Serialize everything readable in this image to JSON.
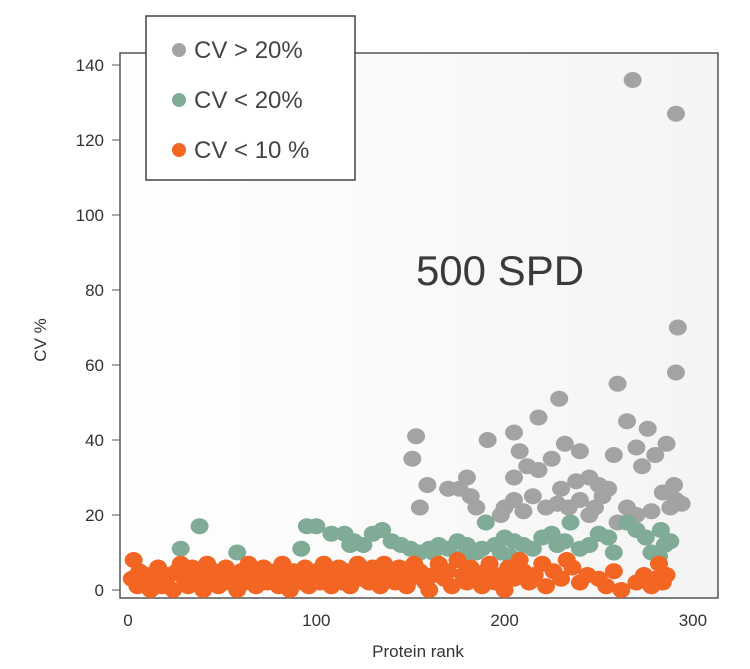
{
  "chart_data": {
    "type": "scatter",
    "title": "",
    "annotation": "500 SPD",
    "xlabel": "Protein rank",
    "ylabel": "CV %",
    "xlim": [
      -5,
      310
    ],
    "ylim": [
      -2,
      142
    ],
    "xticks": [
      0,
      100,
      200,
      300
    ],
    "yticks": [
      0,
      20,
      40,
      60,
      80,
      100,
      120,
      140
    ],
    "grid": false,
    "legend_position": "top-left",
    "series": [
      {
        "name": "CV > 20%",
        "color": "#a3a3a3",
        "points": [
          [
            268,
            136
          ],
          [
            291,
            127
          ],
          [
            292,
            70
          ],
          [
            291,
            58
          ],
          [
            153,
            41
          ],
          [
            151,
            35
          ],
          [
            159,
            28
          ],
          [
            155,
            22
          ],
          [
            191,
            40
          ],
          [
            205,
            42
          ],
          [
            218,
            46
          ],
          [
            229,
            51
          ],
          [
            260,
            55
          ],
          [
            276,
            43
          ],
          [
            286,
            39
          ],
          [
            265,
            45
          ],
          [
            258,
            36
          ],
          [
            270,
            38
          ],
          [
            273,
            33
          ],
          [
            280,
            36
          ],
          [
            232,
            39
          ],
          [
            240,
            37
          ],
          [
            225,
            35
          ],
          [
            208,
            37
          ],
          [
            212,
            33
          ],
          [
            218,
            32
          ],
          [
            205,
            30
          ],
          [
            180,
            30
          ],
          [
            176,
            27
          ],
          [
            170,
            27
          ],
          [
            182,
            25
          ],
          [
            230,
            27
          ],
          [
            238,
            29
          ],
          [
            245,
            30
          ],
          [
            250,
            28
          ],
          [
            252,
            25
          ],
          [
            255,
            27
          ],
          [
            248,
            22
          ],
          [
            245,
            20
          ],
          [
            240,
            24
          ],
          [
            234,
            22
          ],
          [
            228,
            23
          ],
          [
            222,
            22
          ],
          [
            215,
            25
          ],
          [
            205,
            24
          ],
          [
            200,
            22
          ],
          [
            198,
            20
          ],
          [
            210,
            21
          ],
          [
            260,
            18
          ],
          [
            265,
            22
          ],
          [
            288,
            22
          ],
          [
            291,
            24
          ],
          [
            294,
            23
          ],
          [
            284,
            26
          ],
          [
            290,
            28
          ],
          [
            278,
            21
          ],
          [
            270,
            20
          ],
          [
            185,
            22
          ]
        ]
      },
      {
        "name": "CV < 20%",
        "color": "#7fab97",
        "points": [
          [
            28,
            11
          ],
          [
            38,
            17
          ],
          [
            58,
            10
          ],
          [
            92,
            11
          ],
          [
            95,
            17
          ],
          [
            100,
            17
          ],
          [
            108,
            15
          ],
          [
            115,
            15
          ],
          [
            120,
            13
          ],
          [
            125,
            12
          ],
          [
            130,
            15
          ],
          [
            135,
            16
          ],
          [
            118,
            12
          ],
          [
            140,
            13
          ],
          [
            145,
            12
          ],
          [
            150,
            11
          ],
          [
            155,
            10
          ],
          [
            160,
            11
          ],
          [
            165,
            12
          ],
          [
            170,
            11
          ],
          [
            175,
            13
          ],
          [
            180,
            12
          ],
          [
            185,
            10
          ],
          [
            188,
            11
          ],
          [
            190,
            18
          ],
          [
            195,
            12
          ],
          [
            198,
            10
          ],
          [
            200,
            14
          ],
          [
            205,
            13
          ],
          [
            210,
            12
          ],
          [
            215,
            11
          ],
          [
            220,
            14
          ],
          [
            225,
            15
          ],
          [
            228,
            12
          ],
          [
            232,
            13
          ],
          [
            235,
            18
          ],
          [
            240,
            11
          ],
          [
            245,
            12
          ],
          [
            250,
            15
          ],
          [
            255,
            14
          ],
          [
            258,
            10
          ],
          [
            265,
            18
          ],
          [
            270,
            16
          ],
          [
            275,
            14
          ],
          [
            278,
            10
          ],
          [
            283,
            16
          ],
          [
            285,
            12
          ],
          [
            288,
            13
          ],
          [
            282,
            9
          ],
          [
            162,
            10
          ],
          [
            178,
            9
          ],
          [
            203,
            9
          ]
        ]
      },
      {
        "name": "CV < 10 %",
        "color": "#f26522",
        "points": [
          [
            2,
            3
          ],
          [
            3,
            8
          ],
          [
            5,
            1
          ],
          [
            6,
            5
          ],
          [
            8,
            2
          ],
          [
            10,
            4
          ],
          [
            12,
            0
          ],
          [
            14,
            3
          ],
          [
            16,
            6
          ],
          [
            18,
            1
          ],
          [
            20,
            2
          ],
          [
            22,
            4
          ],
          [
            24,
            0
          ],
          [
            26,
            5
          ],
          [
            28,
            7
          ],
          [
            30,
            3
          ],
          [
            32,
            1
          ],
          [
            34,
            6
          ],
          [
            36,
            2
          ],
          [
            38,
            4
          ],
          [
            40,
            0
          ],
          [
            42,
            7
          ],
          [
            44,
            3
          ],
          [
            46,
            5
          ],
          [
            48,
            1
          ],
          [
            50,
            3
          ],
          [
            52,
            6
          ],
          [
            54,
            2
          ],
          [
            56,
            4
          ],
          [
            58,
            0
          ],
          [
            60,
            5
          ],
          [
            62,
            2
          ],
          [
            64,
            7
          ],
          [
            66,
            3
          ],
          [
            68,
            1
          ],
          [
            70,
            4
          ],
          [
            72,
            6
          ],
          [
            74,
            2
          ],
          [
            76,
            3
          ],
          [
            78,
            5
          ],
          [
            80,
            1
          ],
          [
            82,
            7
          ],
          [
            84,
            3
          ],
          [
            86,
            0
          ],
          [
            88,
            5
          ],
          [
            90,
            2
          ],
          [
            92,
            4
          ],
          [
            94,
            6
          ],
          [
            96,
            1
          ],
          [
            98,
            3
          ],
          [
            100,
            5
          ],
          [
            102,
            2
          ],
          [
            104,
            7
          ],
          [
            106,
            4
          ],
          [
            108,
            1
          ],
          [
            110,
            3
          ],
          [
            112,
            6
          ],
          [
            114,
            2
          ],
          [
            116,
            5
          ],
          [
            118,
            1
          ],
          [
            120,
            4
          ],
          [
            122,
            7
          ],
          [
            124,
            3
          ],
          [
            126,
            5
          ],
          [
            128,
            2
          ],
          [
            130,
            6
          ],
          [
            132,
            4
          ],
          [
            134,
            1
          ],
          [
            136,
            7
          ],
          [
            138,
            3
          ],
          [
            140,
            5
          ],
          [
            142,
            2
          ],
          [
            144,
            6
          ],
          [
            146,
            4
          ],
          [
            148,
            1
          ],
          [
            150,
            3
          ],
          [
            152,
            7
          ],
          [
            155,
            5
          ],
          [
            158,
            2
          ],
          [
            160,
            0
          ],
          [
            162,
            4
          ],
          [
            165,
            7
          ],
          [
            168,
            3
          ],
          [
            170,
            5
          ],
          [
            172,
            1
          ],
          [
            175,
            8
          ],
          [
            178,
            4
          ],
          [
            180,
            2
          ],
          [
            182,
            6
          ],
          [
            185,
            3
          ],
          [
            188,
            1
          ],
          [
            190,
            5
          ],
          [
            192,
            7
          ],
          [
            195,
            2
          ],
          [
            198,
            4
          ],
          [
            200,
            0
          ],
          [
            202,
            6
          ],
          [
            205,
            3
          ],
          [
            208,
            8
          ],
          [
            210,
            5
          ],
          [
            213,
            2
          ],
          [
            216,
            4
          ],
          [
            220,
            7
          ],
          [
            222,
            1
          ],
          [
            226,
            5
          ],
          [
            230,
            3
          ],
          [
            233,
            8
          ],
          [
            236,
            6
          ],
          [
            240,
            2
          ],
          [
            244,
            4
          ],
          [
            250,
            3
          ],
          [
            254,
            1
          ],
          [
            258,
            5
          ],
          [
            262,
            0
          ],
          [
            270,
            2
          ],
          [
            274,
            4
          ],
          [
            278,
            1
          ],
          [
            280,
            3
          ],
          [
            282,
            7
          ],
          [
            284,
            2
          ],
          [
            286,
            4
          ]
        ]
      }
    ]
  }
}
